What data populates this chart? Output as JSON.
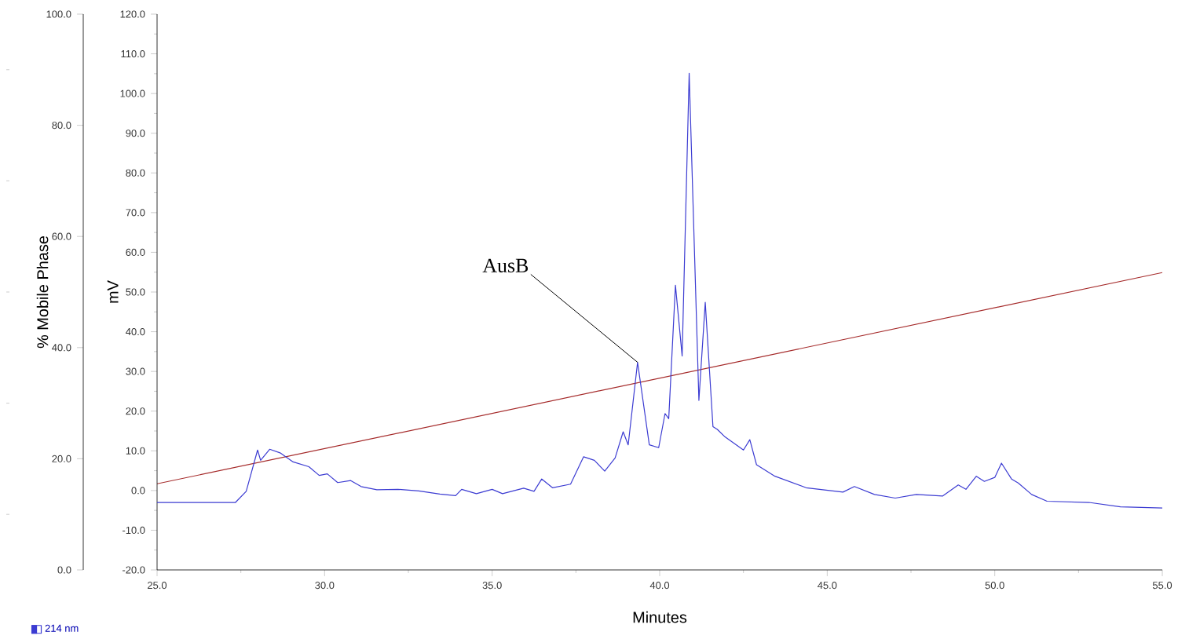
{
  "chart_data": {
    "type": "line",
    "xlabel": "Minutes",
    "ylabel": "mV",
    "y2label": "% Mobile Phase",
    "xlim": [
      25,
      55
    ],
    "xticks": [
      {
        "value": 25,
        "label": "25.0"
      },
      {
        "value": 30,
        "label": "30.0"
      },
      {
        "value": 35,
        "label": "35.0"
      },
      {
        "value": 40,
        "label": "40.0"
      },
      {
        "value": 45,
        "label": "45.0"
      },
      {
        "value": 50,
        "label": "50.0"
      },
      {
        "value": 55,
        "label": "55.0"
      }
    ],
    "ylim": [
      -20,
      120
    ],
    "yticks": [
      {
        "value": -20,
        "label": "-20.0"
      },
      {
        "value": -10,
        "label": "-10.0"
      },
      {
        "value": 0,
        "label": "0.0"
      },
      {
        "value": 10,
        "label": "10.0"
      },
      {
        "value": 20,
        "label": "20.0"
      },
      {
        "value": 30,
        "label": "30.0"
      },
      {
        "value": 40,
        "label": "40.0"
      },
      {
        "value": 50,
        "label": "50.0"
      },
      {
        "value": 60,
        "label": "60.0"
      },
      {
        "value": 70,
        "label": "70.0"
      },
      {
        "value": 80,
        "label": "80.0"
      },
      {
        "value": 90,
        "label": "90.0"
      },
      {
        "value": 100,
        "label": "100.0"
      },
      {
        "value": 110,
        "label": "110.0"
      },
      {
        "value": 120,
        "label": "120.0"
      }
    ],
    "y2lim": [
      0,
      100
    ],
    "y2ticks": [
      {
        "value": 0,
        "label": "0.0"
      },
      {
        "value": 20,
        "label": "20.0"
      },
      {
        "value": 40,
        "label": "40.0"
      },
      {
        "value": 60,
        "label": "60.0"
      },
      {
        "value": 80,
        "label": "80.0"
      },
      {
        "value": 100,
        "label": "100.0"
      }
    ],
    "series": [
      {
        "name": "214 nm",
        "color": "#3c3cd2",
        "x": [
          25,
          27.34,
          27.66,
          28.0,
          28.09,
          28.36,
          28.67,
          29.06,
          29.53,
          29.84,
          30.08,
          30.39,
          30.78,
          31.09,
          31.56,
          32.19,
          32.81,
          33.44,
          33.91,
          34.09,
          34.53,
          35.0,
          35.31,
          35.94,
          36.25,
          36.48,
          36.8,
          37.34,
          37.73,
          38.05,
          38.36,
          38.67,
          38.91,
          39.06,
          39.34,
          39.69,
          39.97,
          40.16,
          40.27,
          40.47,
          40.67,
          40.88,
          41.17,
          41.36,
          41.59,
          41.72,
          41.95,
          42.5,
          42.69,
          42.89,
          43.44,
          44.37,
          45.47,
          45.81,
          46.41,
          47.03,
          47.66,
          48.44,
          48.91,
          49.14,
          49.45,
          49.69,
          50.0,
          50.2,
          50.5,
          50.7,
          51.1,
          51.56,
          52.81,
          53.75,
          55
        ],
        "values": [
          -3,
          -3,
          -0.2,
          10.2,
          7.6,
          10.4,
          9.5,
          7.2,
          6.0,
          3.8,
          4.2,
          2.0,
          2.5,
          1.0,
          0.2,
          0.3,
          -0.1,
          -0.9,
          -1.3,
          0.3,
          -0.8,
          0.3,
          -0.8,
          0.6,
          -0.2,
          2.9,
          0.7,
          1.6,
          8.5,
          7.6,
          4.9,
          8.2,
          14.8,
          11.5,
          32.3,
          11.5,
          10.8,
          19.4,
          18.1,
          51.7,
          33.9,
          105.1,
          22.7,
          47.4,
          16.1,
          15.4,
          13.5,
          10.2,
          12.8,
          6.5,
          3.6,
          0.7,
          -0.4,
          1.0,
          -1.0,
          -1.9,
          -1.0,
          -1.4,
          1.4,
          0.3,
          3.6,
          2.3,
          3.3,
          6.9,
          2.9,
          1.9,
          -1.0,
          -2.7,
          -3.0,
          -4.1,
          -4.4
        ]
      },
      {
        "color": "#a52a2a",
        "axis": "y2",
        "x": [
          25,
          55
        ],
        "values": [
          15.5,
          53.5
        ]
      }
    ],
    "annotations": [
      {
        "text": "AusB",
        "x": 39.34,
        "y": 32.3
      }
    ],
    "legend": "bottom left",
    "marker": "none"
  }
}
